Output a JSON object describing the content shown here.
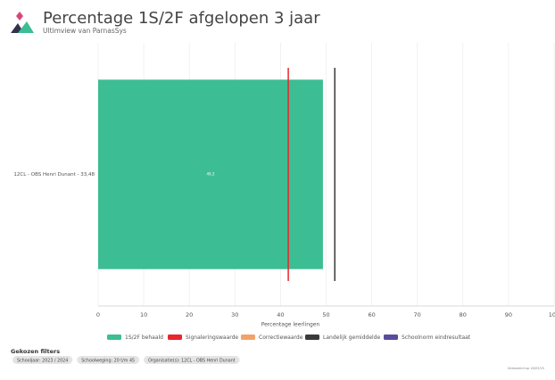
{
  "chart_data": {
    "type": "bar",
    "orientation": "horizontal",
    "title": "Percentage 1S/2F afgelopen 3 jaar",
    "subtitle": "Ultimview van ParnasSys",
    "categories": [
      "12CL - OBS Henri Dunant - 33,48"
    ],
    "series": [
      {
        "name": "1S/2F behaald",
        "type": "bar",
        "color": "#3dbd93",
        "values": [
          49.3
        ],
        "value_labels": [
          "49,3"
        ]
      },
      {
        "name": "Signaleringswaarde",
        "type": "reference-line",
        "color": "#e8262d",
        "values": [
          41.7
        ]
      },
      {
        "name": "Correctiewaarde",
        "type": "reference-line",
        "color": "#f2a36b",
        "values": [
          null
        ]
      },
      {
        "name": "Landelijk gemiddelde",
        "type": "reference-line",
        "color": "#3a3a3a",
        "values": [
          51.9
        ]
      },
      {
        "name": "Schoolnorm eindresultaat",
        "type": "reference-line",
        "color": "#5a4c9c",
        "values": [
          null
        ]
      }
    ],
    "xlabel": "Percentage leerlingen",
    "xlim": [
      0,
      100
    ],
    "xticks": [
      0,
      10,
      20,
      30,
      40,
      50,
      60,
      70,
      80,
      90,
      100
    ],
    "grid": true,
    "legend": "bottom"
  },
  "filters": {
    "title": "Gekozen filters",
    "chips": [
      "Schooljaar: 2023 / 2024",
      "Schoolweging: 20 t/m 45",
      "Organisatie(s): 12CL - OBS Henri Dunant"
    ]
  },
  "footer_note": "Gebaseerd op 18/03/25"
}
